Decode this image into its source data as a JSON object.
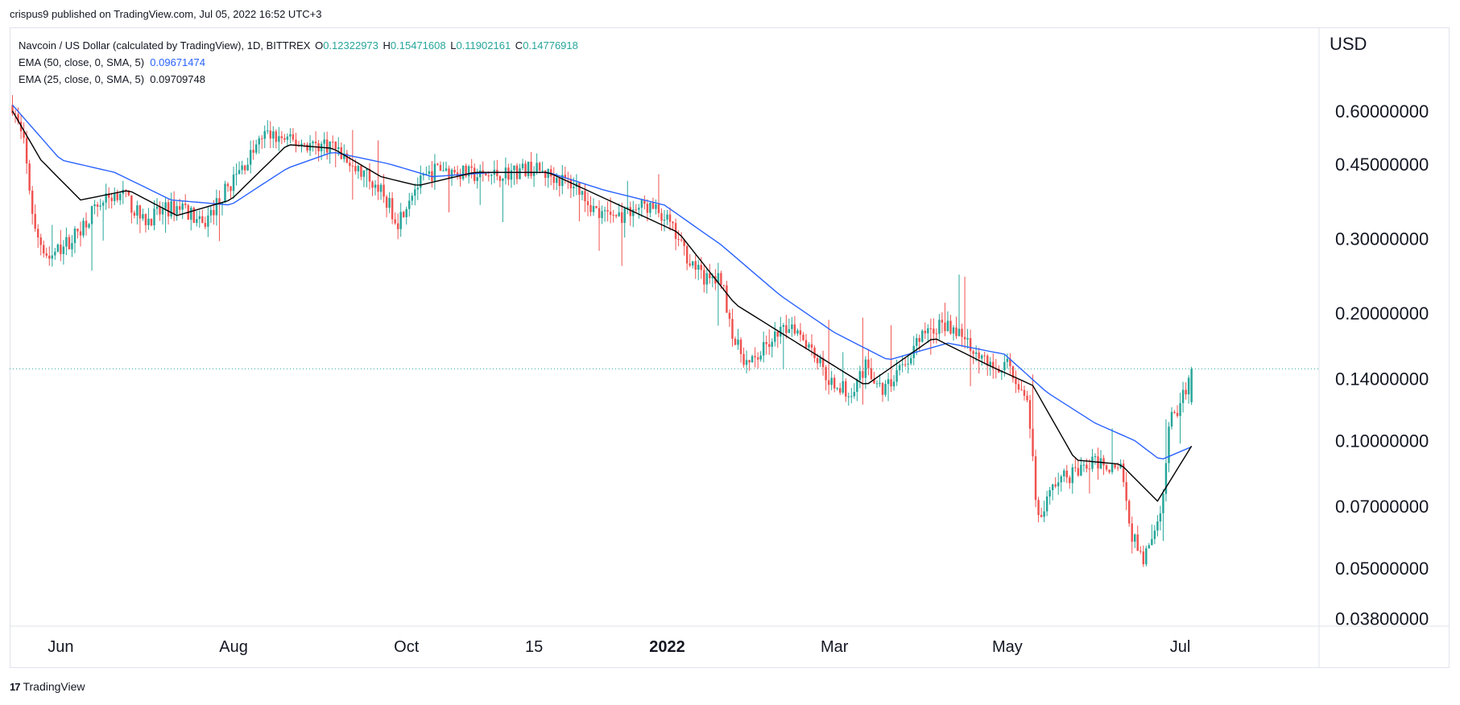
{
  "header": {
    "published": "crispus9 published on TradingView.com, Jul 05, 2022 16:52 UTC+3"
  },
  "legend": {
    "symbol": "Navcoin / US Dollar (calculated by TradingView), 1D, BITTREX",
    "o_key": "O",
    "o_val": "0.12322973",
    "h_key": "H",
    "h_val": "0.15471608",
    "l_key": "L",
    "l_val": "0.11902161",
    "c_key": "C",
    "c_val": "0.14776918",
    "ema50_label": "EMA (50, close, 0, SMA, 5)",
    "ema50_val": "0.09671474",
    "ema25_label": "EMA (25, close, 0, SMA, 5)",
    "ema25_val": "0.09709748"
  },
  "footer": {
    "brand": "TradingView",
    "logo": "17"
  },
  "colors": {
    "up": "#26a69a",
    "down": "#ef5350",
    "ema50": "#2962ff",
    "ema25": "#000000",
    "price_line": "#26a69a"
  },
  "chart_data": {
    "type": "candlestick",
    "currency": "USD",
    "y_scale": "log",
    "y_ticks": [
      "0.60000000",
      "0.45000000",
      "0.30000000",
      "0.20000000",
      "0.14000000",
      "0.10000000",
      "0.07000000",
      "0.05000000",
      "0.03800000"
    ],
    "y_tick_values": [
      0.6,
      0.45,
      0.3,
      0.2,
      0.14,
      0.1,
      0.07,
      0.05,
      0.038
    ],
    "x_ticks": [
      {
        "label": "Jun",
        "date": "2021-06-01",
        "bold": false
      },
      {
        "label": "Aug",
        "date": "2021-08-01",
        "bold": false
      },
      {
        "label": "Oct",
        "date": "2021-10-01",
        "bold": false
      },
      {
        "label": "15",
        "date": "2021-11-15",
        "bold": false
      },
      {
        "label": "2022",
        "date": "2022-01-01",
        "bold": true
      },
      {
        "label": "Mar",
        "date": "2022-03-01",
        "bold": false
      },
      {
        "label": "May",
        "date": "2022-05-01",
        "bold": false
      },
      {
        "label": "Jul",
        "date": "2022-07-01",
        "bold": false
      }
    ],
    "last_close": 0.14776918,
    "price_path": [
      [
        "2021-05-15",
        0.62
      ],
      [
        "2021-05-19",
        0.5
      ],
      [
        "2021-05-23",
        0.31
      ],
      [
        "2021-05-28",
        0.27
      ],
      [
        "2021-06-05",
        0.3
      ],
      [
        "2021-06-14",
        0.36
      ],
      [
        "2021-06-22",
        0.39
      ],
      [
        "2021-06-30",
        0.33
      ],
      [
        "2021-07-08",
        0.35
      ],
      [
        "2021-07-14",
        0.36
      ],
      [
        "2021-07-21",
        0.32
      ],
      [
        "2021-07-28",
        0.38
      ],
      [
        "2021-08-05",
        0.45
      ],
      [
        "2021-08-12",
        0.53
      ],
      [
        "2021-08-20",
        0.51
      ],
      [
        "2021-08-28",
        0.5
      ],
      [
        "2021-09-05",
        0.5
      ],
      [
        "2021-09-12",
        0.44
      ],
      [
        "2021-09-20",
        0.41
      ],
      [
        "2021-09-28",
        0.33
      ],
      [
        "2021-10-03",
        0.39
      ],
      [
        "2021-10-12",
        0.44
      ],
      [
        "2021-10-20",
        0.43
      ],
      [
        "2021-10-28",
        0.42
      ],
      [
        "2021-11-06",
        0.43
      ],
      [
        "2021-11-14",
        0.44
      ],
      [
        "2021-11-22",
        0.42
      ],
      [
        "2021-11-30",
        0.4
      ],
      [
        "2021-12-08",
        0.34
      ],
      [
        "2021-12-16",
        0.34
      ],
      [
        "2021-12-24",
        0.36
      ],
      [
        "2021-12-31",
        0.34
      ],
      [
        "2022-01-07",
        0.28
      ],
      [
        "2022-01-14",
        0.24
      ],
      [
        "2022-01-20",
        0.24
      ],
      [
        "2022-01-25",
        0.17
      ],
      [
        "2022-01-30",
        0.15
      ],
      [
        "2022-02-06",
        0.17
      ],
      [
        "2022-02-14",
        0.19
      ],
      [
        "2022-02-20",
        0.17
      ],
      [
        "2022-02-27",
        0.14
      ],
      [
        "2022-03-06",
        0.13
      ],
      [
        "2022-03-12",
        0.15
      ],
      [
        "2022-03-18",
        0.13
      ],
      [
        "2022-03-25",
        0.15
      ],
      [
        "2022-04-02",
        0.18
      ],
      [
        "2022-04-10",
        0.19
      ],
      [
        "2022-04-18",
        0.17
      ],
      [
        "2022-04-25",
        0.15
      ],
      [
        "2022-05-02",
        0.15
      ],
      [
        "2022-05-08",
        0.12
      ],
      [
        "2022-05-12",
        0.065
      ],
      [
        "2022-05-18",
        0.08
      ],
      [
        "2022-05-26",
        0.085
      ],
      [
        "2022-06-03",
        0.09
      ],
      [
        "2022-06-10",
        0.085
      ],
      [
        "2022-06-14",
        0.06
      ],
      [
        "2022-06-18",
        0.052
      ],
      [
        "2022-06-24",
        0.065
      ],
      [
        "2022-06-27",
        0.11
      ],
      [
        "2022-07-01",
        0.12
      ],
      [
        "2022-07-05",
        0.147
      ]
    ],
    "ema50_path": [
      [
        "2021-05-15",
        0.62
      ],
      [
        "2021-06-01",
        0.46
      ],
      [
        "2021-06-20",
        0.43
      ],
      [
        "2021-07-10",
        0.37
      ],
      [
        "2021-07-31",
        0.36
      ],
      [
        "2021-08-20",
        0.44
      ],
      [
        "2021-09-05",
        0.48
      ],
      [
        "2021-09-25",
        0.45
      ],
      [
        "2021-10-10",
        0.42
      ],
      [
        "2021-11-01",
        0.43
      ],
      [
        "2021-11-20",
        0.43
      ],
      [
        "2021-12-10",
        0.39
      ],
      [
        "2021-12-31",
        0.36
      ],
      [
        "2022-01-20",
        0.29
      ],
      [
        "2022-02-10",
        0.22
      ],
      [
        "2022-03-01",
        0.18
      ],
      [
        "2022-03-20",
        0.155
      ],
      [
        "2022-04-10",
        0.17
      ],
      [
        "2022-04-30",
        0.16
      ],
      [
        "2022-05-15",
        0.13
      ],
      [
        "2022-06-01",
        0.11
      ],
      [
        "2022-06-15",
        0.1
      ],
      [
        "2022-06-24",
        0.09
      ],
      [
        "2022-07-05",
        0.0967
      ]
    ],
    "ema25_path": [
      [
        "2021-05-15",
        0.6
      ],
      [
        "2021-05-25",
        0.46
      ],
      [
        "2021-06-08",
        0.37
      ],
      [
        "2021-06-25",
        0.39
      ],
      [
        "2021-07-12",
        0.34
      ],
      [
        "2021-07-31",
        0.37
      ],
      [
        "2021-08-20",
        0.5
      ],
      [
        "2021-09-05",
        0.49
      ],
      [
        "2021-09-22",
        0.42
      ],
      [
        "2021-10-05",
        0.4
      ],
      [
        "2021-10-25",
        0.43
      ],
      [
        "2021-11-20",
        0.43
      ],
      [
        "2021-12-15",
        0.36
      ],
      [
        "2022-01-05",
        0.31
      ],
      [
        "2022-01-25",
        0.21
      ],
      [
        "2022-02-10",
        0.18
      ],
      [
        "2022-03-01",
        0.15
      ],
      [
        "2022-03-12",
        0.135
      ],
      [
        "2022-04-05",
        0.175
      ],
      [
        "2022-04-25",
        0.15
      ],
      [
        "2022-05-10",
        0.135
      ],
      [
        "2022-05-25",
        0.09
      ],
      [
        "2022-06-10",
        0.088
      ],
      [
        "2022-06-23",
        0.072
      ],
      [
        "2022-07-05",
        0.0971
      ]
    ]
  }
}
